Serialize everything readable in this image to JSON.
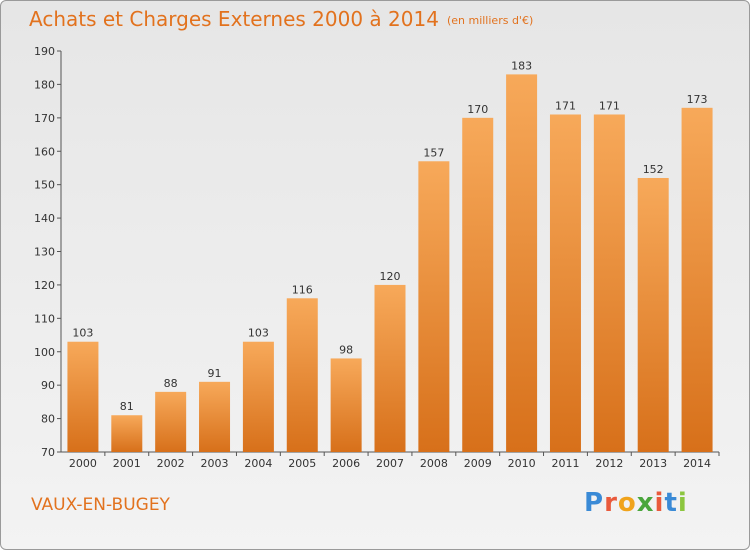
{
  "header": {
    "title": "Achats et Charges Externes 2000 à 2014",
    "unit": "(en milliers d'€)"
  },
  "footer": {
    "commune": "VAUX-EN-BUGEY",
    "logo_letters": [
      "P",
      "r",
      "o",
      "x",
      "i",
      "t",
      "i"
    ],
    "logo_colors": [
      "#3a8ad6",
      "#e95a3c",
      "#f0a31b",
      "#4aa63c",
      "#e95a3c",
      "#3a8ad6",
      "#8cc63f"
    ]
  },
  "colors": {
    "bar_top": "#f7a95a",
    "bar_bottom": "#d7701a",
    "accent": "#e2721e"
  },
  "chart_data": {
    "type": "bar",
    "title": "Achats et Charges Externes 2000 à 2014",
    "categories": [
      "2000",
      "2001",
      "2002",
      "2003",
      "2004",
      "2005",
      "2006",
      "2007",
      "2008",
      "2009",
      "2010",
      "2011",
      "2012",
      "2013",
      "2014"
    ],
    "values": [
      103,
      81,
      88,
      91,
      103,
      116,
      98,
      120,
      157,
      170,
      183,
      171,
      171,
      152,
      173
    ],
    "ylim": [
      70,
      190
    ],
    "yticks": [
      70,
      80,
      90,
      100,
      110,
      120,
      130,
      140,
      150,
      160,
      170,
      180,
      190
    ],
    "grid": false,
    "data_labels": true
  }
}
